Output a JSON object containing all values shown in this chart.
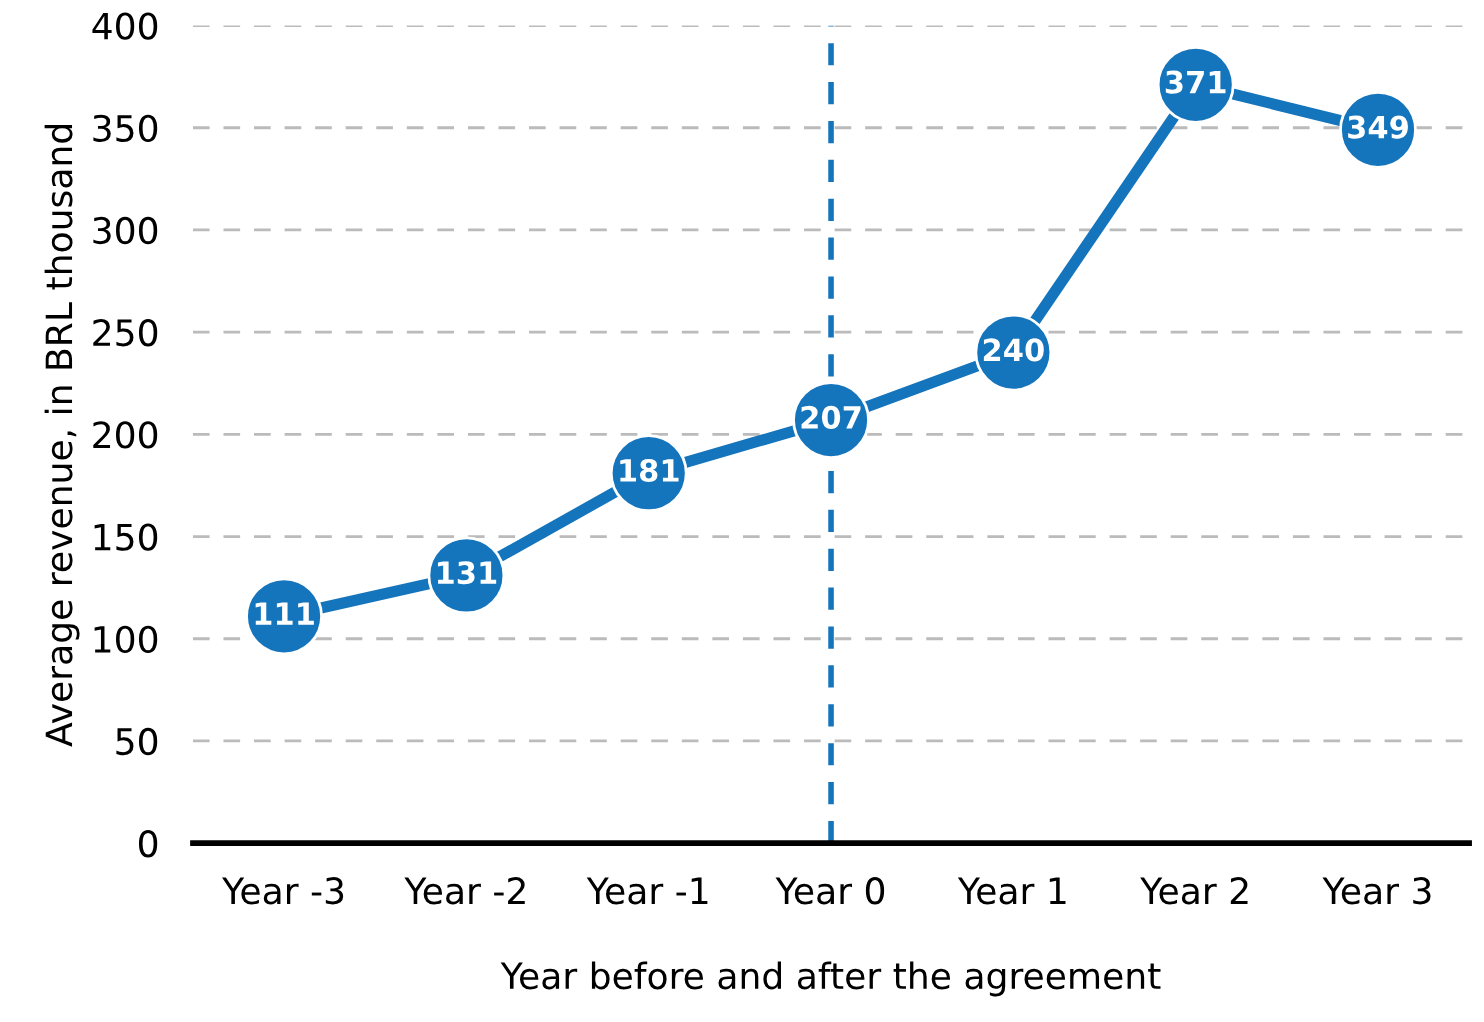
{
  "chart_data": {
    "type": "line",
    "xlabel": "Year before and after the agreement",
    "ylabel": "Average revenue, in BRL thousand",
    "categories": [
      "Year -3",
      "Year -2",
      "Year -1",
      "Year 0",
      "Year 1",
      "Year 2",
      "Year 3"
    ],
    "series": [
      {
        "color": "#1474bc",
        "values": [
          111,
          131,
          181,
          207,
          240,
          371,
          349
        ]
      }
    ],
    "ylim": [
      0,
      400
    ],
    "yticks": [
      0,
      50,
      100,
      150,
      200,
      250,
      300,
      350,
      400
    ],
    "grid": "y",
    "marker": "circle",
    "line_style": "solid",
    "data_labels": true,
    "ref_lines": [
      {
        "axis": "x",
        "value": "Year 0",
        "color": "#1474bc",
        "line_style": "dashed"
      }
    ]
  }
}
